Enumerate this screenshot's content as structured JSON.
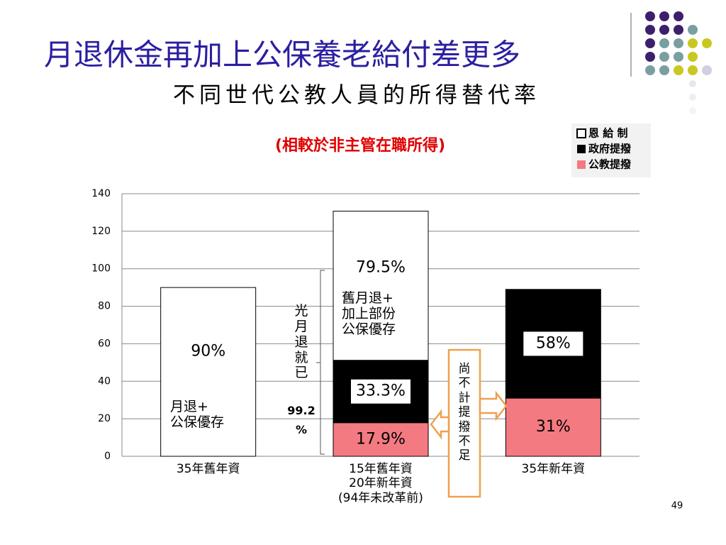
{
  "page_title": "月退休金再加上公保養老給付差更多",
  "page_subtitle": "不同世代公教人員的所得替代率",
  "page_number": "49",
  "chart_data": {
    "type": "stacked_bar",
    "title": "(相較於非主管在職所得)",
    "categories": [
      "35年舊年資",
      "15年舊年資\n20年新年資\n(94年未改革前)",
      "35年新年資"
    ],
    "series": [
      {
        "name": "公教提撥",
        "color": "#f47a82",
        "values": [
          null,
          17.9,
          31
        ],
        "value_labels": [
          null,
          "17.9%",
          "31%"
        ]
      },
      {
        "name": "政府提撥",
        "color": "#000000",
        "values": [
          null,
          33.3,
          58
        ],
        "value_labels": [
          null,
          "33.3%",
          "58%"
        ]
      },
      {
        "name": "恩 給 制",
        "color": "#ffffff",
        "values": [
          90,
          79.5,
          null
        ],
        "value_labels": [
          "90%",
          "79.5%",
          null
        ]
      }
    ],
    "ylim": [
      0,
      140
    ],
    "yticks": [
      0,
      20,
      40,
      60,
      80,
      100,
      120,
      140
    ],
    "grid": true,
    "legend": "top-right",
    "annotations": [
      "月退+\n公保優存",
      "舊月退+\n加上部份\n公保優存",
      "光\n月\n退\n就\n已",
      "99.2\n%",
      "尚\n不\n計\n提\n撥\n不\n足"
    ]
  }
}
